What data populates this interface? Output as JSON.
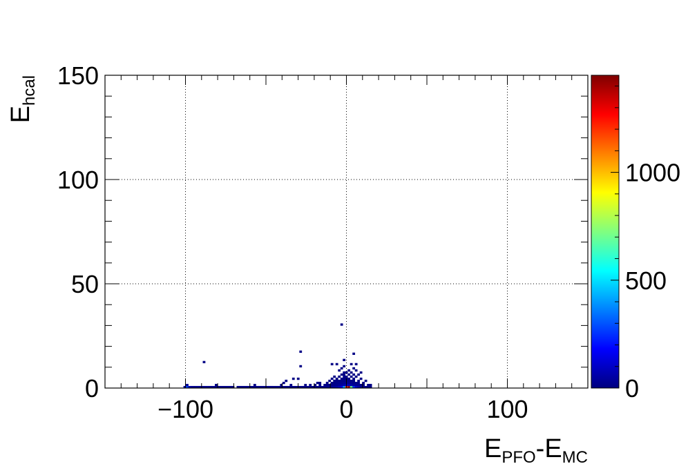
{
  "chart_data": {
    "type": "heatmap",
    "title": "",
    "xlabel": {
      "parts": [
        [
          "E",
          ""
        ],
        [
          "PFO",
          "sub"
        ],
        [
          "-E",
          ""
        ],
        [
          "MC",
          "sub"
        ]
      ]
    },
    "ylabel": {
      "parts": [
        [
          "E",
          ""
        ],
        [
          "hcal",
          "sub"
        ]
      ]
    },
    "xlim": [
      -150,
      150
    ],
    "ylim": [
      0,
      150
    ],
    "zlim": [
      0,
      1450
    ],
    "x_ticks": [
      -100,
      0,
      100
    ],
    "x_tick_labels": [
      "−100",
      "0",
      "100"
    ],
    "y_ticks": [
      0,
      50,
      100,
      150
    ],
    "y_tick_labels": [
      "0",
      "50",
      "100",
      "150"
    ],
    "z_ticks": [
      0,
      500,
      1000
    ],
    "z_tick_labels": [
      "0",
      "500",
      "1000"
    ],
    "grid": true,
    "colormap": [
      "#00007f",
      "#0000ff",
      "#0080ff",
      "#00ffff",
      "#80ff80",
      "#ffff00",
      "#ff8000",
      "#ff0000",
      "#7f0000"
    ],
    "bin_width_x": 1.5,
    "bin_height_y": 1.0,
    "cells": [
      [
        -100.5,
        0.5,
        45
      ],
      [
        -99,
        0.5,
        280
      ],
      [
        -97.5,
        0.5,
        60
      ],
      [
        -99,
        1.5,
        30
      ],
      [
        -96,
        0.5,
        25
      ],
      [
        -94.5,
        0.5,
        20
      ],
      [
        -93,
        0.5,
        20
      ],
      [
        -91.5,
        0.5,
        18
      ],
      [
        -90,
        0.5,
        18
      ],
      [
        -88.5,
        0.5,
        15
      ],
      [
        -87,
        0.5,
        15
      ],
      [
        -85.5,
        0.5,
        15
      ],
      [
        -84,
        0.5,
        14
      ],
      [
        -82.5,
        0.5,
        14
      ],
      [
        -81,
        0.5,
        13
      ],
      [
        -79.5,
        0.5,
        13
      ],
      [
        -78,
        0.5,
        12
      ],
      [
        -76.5,
        0.5,
        12
      ],
      [
        -75,
        0.5,
        12
      ],
      [
        -73.5,
        0.5,
        11
      ],
      [
        -72,
        0.5,
        11
      ],
      [
        -70.5,
        0.5,
        11
      ],
      [
        -67.5,
        0.5,
        10
      ],
      [
        -66,
        0.5,
        10
      ],
      [
        -63,
        0.5,
        10
      ],
      [
        -61.5,
        0.5,
        10
      ],
      [
        -60,
        0.5,
        10
      ],
      [
        -58.5,
        0.5,
        10
      ],
      [
        -57,
        0.5,
        10
      ],
      [
        -55.5,
        0.5,
        10
      ],
      [
        -54,
        0.5,
        10
      ],
      [
        -52.5,
        0.5,
        10
      ],
      [
        -51,
        0.5,
        10
      ],
      [
        -49.5,
        0.5,
        10
      ],
      [
        -48,
        0.5,
        10
      ],
      [
        -46.5,
        0.5,
        10
      ],
      [
        -45,
        0.5,
        10
      ],
      [
        -43.5,
        0.5,
        10
      ],
      [
        -42,
        0.5,
        10
      ],
      [
        -40.5,
        0.5,
        10
      ],
      [
        -39,
        0.5,
        10
      ],
      [
        -37.5,
        0.5,
        10
      ],
      [
        -36,
        0.5,
        10
      ],
      [
        -34.5,
        0.5,
        10
      ],
      [
        -33,
        0.5,
        10
      ],
      [
        -31.5,
        0.5,
        10
      ],
      [
        -30,
        0.5,
        10
      ],
      [
        -28.5,
        0.5,
        10
      ],
      [
        -27,
        0.5,
        10
      ],
      [
        -25.5,
        0.5,
        10
      ],
      [
        -24,
        0.5,
        10
      ],
      [
        -22.5,
        0.5,
        12
      ],
      [
        -21,
        0.5,
        12
      ],
      [
        -19.5,
        0.5,
        14
      ],
      [
        -18,
        0.5,
        14
      ],
      [
        -16.5,
        0.5,
        16
      ],
      [
        -15,
        0.5,
        18
      ],
      [
        -13.5,
        0.5,
        20
      ],
      [
        -12,
        0.5,
        25
      ],
      [
        -10.5,
        0.5,
        30
      ],
      [
        -9,
        0.5,
        35
      ],
      [
        -7.5,
        0.5,
        45
      ],
      [
        -6,
        0.5,
        60
      ],
      [
        -4.5,
        0.5,
        90
      ],
      [
        -3,
        0.5,
        160
      ],
      [
        -1.5,
        0.5,
        420
      ],
      [
        0,
        0.5,
        1200
      ],
      [
        1.5,
        0.5,
        1400
      ],
      [
        3,
        0.5,
        700
      ],
      [
        4.5,
        0.5,
        260
      ],
      [
        6,
        0.5,
        120
      ],
      [
        7.5,
        0.5,
        70
      ],
      [
        9,
        0.5,
        40
      ],
      [
        10.5,
        0.5,
        25
      ],
      [
        12,
        0.5,
        15
      ],
      [
        13.5,
        0.5,
        12
      ],
      [
        15,
        0.5,
        10
      ],
      [
        -22.5,
        1.5,
        10
      ],
      [
        -19.5,
        1.5,
        10
      ],
      [
        -16.5,
        1.5,
        10
      ],
      [
        -13.5,
        1.5,
        10
      ],
      [
        -12,
        1.5,
        10
      ],
      [
        -10.5,
        1.5,
        12
      ],
      [
        -9,
        1.5,
        14
      ],
      [
        -7.5,
        1.5,
        16
      ],
      [
        -6,
        1.5,
        20
      ],
      [
        -4.5,
        1.5,
        30
      ],
      [
        -3,
        1.5,
        50
      ],
      [
        -1.5,
        1.5,
        70
      ],
      [
        0,
        1.5,
        85
      ],
      [
        1.5,
        1.5,
        80
      ],
      [
        3,
        1.5,
        60
      ],
      [
        4.5,
        1.5,
        40
      ],
      [
        6,
        1.5,
        25
      ],
      [
        7.5,
        1.5,
        18
      ],
      [
        9,
        1.5,
        12
      ],
      [
        10.5,
        1.5,
        10
      ],
      [
        13.5,
        1.5,
        10
      ],
      [
        15,
        1.5,
        10
      ],
      [
        -16.5,
        2.5,
        10
      ],
      [
        -12,
        2.5,
        10
      ],
      [
        -9,
        2.5,
        10
      ],
      [
        -7.5,
        2.5,
        12
      ],
      [
        -6,
        2.5,
        14
      ],
      [
        -4.5,
        2.5,
        18
      ],
      [
        -3,
        2.5,
        24
      ],
      [
        -1.5,
        2.5,
        30
      ],
      [
        0,
        2.5,
        32
      ],
      [
        1.5,
        2.5,
        30
      ],
      [
        3,
        2.5,
        24
      ],
      [
        4.5,
        2.5,
        16
      ],
      [
        6,
        2.5,
        12
      ],
      [
        7.5,
        2.5,
        10
      ],
      [
        10.5,
        2.5,
        10
      ],
      [
        -10.5,
        3.5,
        10
      ],
      [
        -7.5,
        3.5,
        10
      ],
      [
        -6,
        3.5,
        10
      ],
      [
        -4.5,
        3.5,
        12
      ],
      [
        -3,
        3.5,
        14
      ],
      [
        -1.5,
        3.5,
        16
      ],
      [
        0,
        3.5,
        18
      ],
      [
        1.5,
        3.5,
        16
      ],
      [
        3,
        3.5,
        12
      ],
      [
        4.5,
        3.5,
        10
      ],
      [
        7.5,
        3.5,
        10
      ],
      [
        12,
        3.5,
        10
      ],
      [
        -9,
        4.5,
        10
      ],
      [
        -6,
        4.5,
        10
      ],
      [
        -3,
        4.5,
        10
      ],
      [
        -1.5,
        4.5,
        12
      ],
      [
        0,
        4.5,
        12
      ],
      [
        1.5,
        4.5,
        10
      ],
      [
        4.5,
        4.5,
        10
      ],
      [
        9,
        4.5,
        10
      ],
      [
        -7.5,
        5.5,
        10
      ],
      [
        -4.5,
        5.5,
        10
      ],
      [
        -1.5,
        5.5,
        10
      ],
      [
        0,
        5.5,
        10
      ],
      [
        3,
        5.5,
        10
      ],
      [
        6,
        5.5,
        10
      ],
      [
        -3,
        6.5,
        10
      ],
      [
        -1.5,
        6.5,
        10
      ],
      [
        1.5,
        6.5,
        10
      ],
      [
        4.5,
        6.5,
        10
      ],
      [
        7.5,
        6.5,
        10
      ],
      [
        -1.5,
        7.5,
        10
      ],
      [
        0,
        7.5,
        10
      ],
      [
        3,
        7.5,
        10
      ],
      [
        9,
        7.5,
        10
      ],
      [
        -4.5,
        8.5,
        10
      ],
      [
        1.5,
        8.5,
        10
      ],
      [
        6,
        8.5,
        10
      ],
      [
        -3,
        9.5,
        10
      ],
      [
        4.5,
        9.5,
        10
      ],
      [
        -1.5,
        10.5,
        10
      ],
      [
        -9,
        11.5,
        10
      ],
      [
        -6,
        11.5,
        10
      ],
      [
        3,
        11.5,
        10
      ],
      [
        6,
        11.5,
        10
      ],
      [
        -1.5,
        13.5,
        10
      ],
      [
        4.5,
        16.5,
        10
      ],
      [
        -3,
        30.5,
        10
      ],
      [
        -28.5,
        10.5,
        10
      ],
      [
        -28.5,
        17.5,
        10
      ],
      [
        -30,
        4.5,
        10
      ],
      [
        -33,
        4.5,
        10
      ],
      [
        -37.5,
        3.5,
        10
      ],
      [
        -39,
        2.5,
        10
      ],
      [
        -40.5,
        1.5,
        10
      ],
      [
        -34.5,
        1.5,
        10
      ],
      [
        -27,
        0.5,
        12
      ],
      [
        -88.5,
        12.5,
        10
      ],
      [
        -46.5,
        0.5,
        10
      ],
      [
        -70.5,
        0.5,
        10
      ],
      [
        -81,
        1.5,
        10
      ],
      [
        -64.5,
        0.5,
        10
      ],
      [
        -57,
        1.5,
        10
      ],
      [
        -25.5,
        1.5,
        10
      ],
      [
        -18,
        2.5,
        10
      ]
    ]
  }
}
